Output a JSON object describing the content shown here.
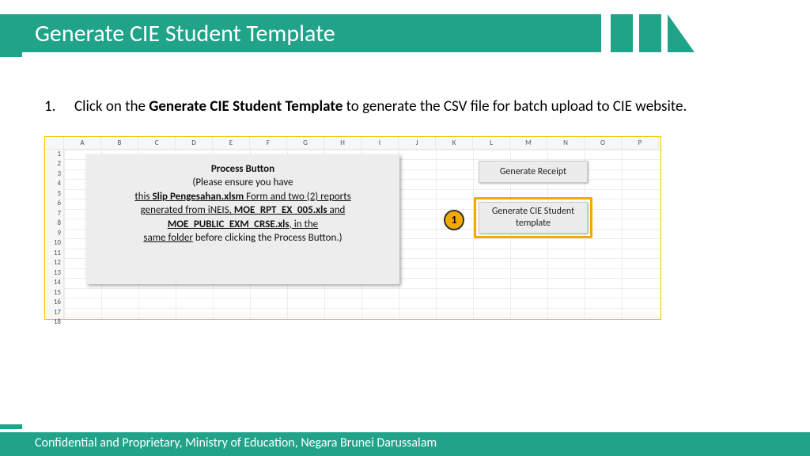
{
  "colors": {
    "brand": "#21a38a",
    "highlight": "#f2a900",
    "gridBorder": "#f2c400"
  },
  "header": {
    "title": "Generate CIE Student Template"
  },
  "instruction": {
    "num": "1.",
    "pre": "Click on the ",
    "bold": "Generate CIE Student Template",
    "post": " to generate the CSV file for batch upload to CIE website."
  },
  "spreadsheet": {
    "columns": [
      "A",
      "B",
      "C",
      "D",
      "E",
      "F",
      "G",
      "H",
      "I",
      "J",
      "K",
      "L",
      "M",
      "N",
      "O",
      "P"
    ],
    "rows": [
      "1",
      "2",
      "3",
      "4",
      "5",
      "6",
      "7",
      "8",
      "9",
      "10",
      "11",
      "12",
      "13",
      "14",
      "15",
      "16",
      "17",
      "18"
    ]
  },
  "textbox": {
    "title": "Process Button",
    "l1a": "(Please ensure you have",
    "l2a": "this ",
    "l2b": "Slip Pengesahan.xlsm",
    "l2c": " Form and two (2) reports",
    "l3a": "generated from iNEIS, ",
    "l3b": "MOE_RPT_EX_005.xls",
    "l3c": " and",
    "l4a": "MOE_PUBLIC_EXM_CRSE.xls",
    "l4b": ", in the",
    "l5a": "same folder",
    "l5b": " before clicking the Process Button.)"
  },
  "buttons": {
    "receipt": "Generate Receipt",
    "template": "Generate CIE Student template"
  },
  "callout": "1",
  "footer": "Confidential and Proprietary, Ministry of Education, Negara Brunei Darussalam"
}
